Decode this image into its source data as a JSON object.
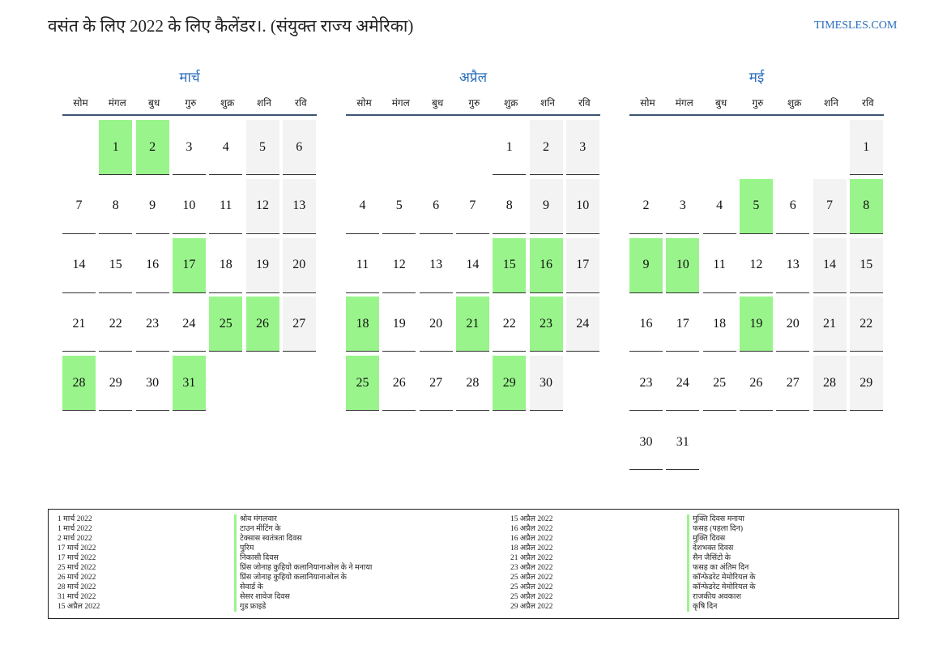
{
  "header": {
    "title": "वसंत के लिए 2022 के लिए कैलेंडर।. (संयुक्त राज्य अमेरिका)",
    "site": "TIMESLES.COM"
  },
  "weekdays": [
    "सोम",
    "मंगल",
    "बुध",
    "गुरु",
    "शुक्र",
    "शनि",
    "रवि"
  ],
  "months": [
    {
      "name": "मार्च",
      "weeks": [
        [
          null,
          1,
          2,
          3,
          4,
          5,
          6
        ],
        [
          7,
          8,
          9,
          10,
          11,
          12,
          13
        ],
        [
          14,
          15,
          16,
          17,
          18,
          19,
          20
        ],
        [
          21,
          22,
          23,
          24,
          25,
          26,
          27
        ],
        [
          28,
          29,
          30,
          31,
          null,
          null,
          null
        ]
      ],
      "holidays": [
        1,
        2,
        17,
        25,
        26,
        28,
        31
      ]
    },
    {
      "name": "अप्रैल",
      "weeks": [
        [
          null,
          null,
          null,
          null,
          1,
          2,
          3
        ],
        [
          4,
          5,
          6,
          7,
          8,
          9,
          10
        ],
        [
          11,
          12,
          13,
          14,
          15,
          16,
          17
        ],
        [
          18,
          19,
          20,
          21,
          22,
          23,
          24
        ],
        [
          25,
          26,
          27,
          28,
          29,
          30,
          null
        ]
      ],
      "holidays": [
        15,
        16,
        18,
        21,
        23,
        25,
        29
      ]
    },
    {
      "name": "मई",
      "weeks": [
        [
          null,
          null,
          null,
          null,
          null,
          null,
          1
        ],
        [
          2,
          3,
          4,
          5,
          6,
          7,
          8
        ],
        [
          9,
          10,
          11,
          12,
          13,
          14,
          15
        ],
        [
          16,
          17,
          18,
          19,
          20,
          21,
          22
        ],
        [
          23,
          24,
          25,
          26,
          27,
          28,
          29
        ],
        [
          30,
          31,
          null,
          null,
          null,
          null,
          null
        ]
      ],
      "holidays": [
        5,
        8,
        9,
        10,
        19
      ]
    }
  ],
  "holiday_list": [
    {
      "date": "1 मार्च 2022",
      "name": "श्रोव मंगलवार"
    },
    {
      "date": "1 मार्च 2022",
      "name": "टाउन मीटिंग के"
    },
    {
      "date": "2 मार्च 2022",
      "name": "टेक्सास स्वतंत्रता दिवस"
    },
    {
      "date": "17 मार्च 2022",
      "name": "पुरिम"
    },
    {
      "date": "17 मार्च 2022",
      "name": "निकासी दिवस"
    },
    {
      "date": "25 मार्च 2022",
      "name": "प्रिंस जोनाह कुहियो कलानियानाओल के ने मनाया"
    },
    {
      "date": "26 मार्च 2022",
      "name": "प्रिंस जोनाह कुहियो कलानियानाओल के"
    },
    {
      "date": "28 मार्च 2022",
      "name": "सेवार्ड के"
    },
    {
      "date": "31 मार्च 2022",
      "name": "सेसर शावेज दिवस"
    },
    {
      "date": "15 अप्रैल 2022",
      "name": "गुड फ्राइडे"
    },
    {
      "date": "15 अप्रैल 2022",
      "name": "मुक्ति दिवस मनाया"
    },
    {
      "date": "16 अप्रैल 2022",
      "name": "फसह (पहला दिन)"
    },
    {
      "date": "16 अप्रैल 2022",
      "name": "मुक्ति दिवस"
    },
    {
      "date": "18 अप्रैल 2022",
      "name": "देशभक्त दिवस"
    },
    {
      "date": "21 अप्रैल 2022",
      "name": "सैन जैसिंटो के"
    },
    {
      "date": "23 अप्रैल 2022",
      "name": "फसह का अंतिम दिन"
    },
    {
      "date": "25 अप्रैल 2022",
      "name": "कॉन्फेडरेट मेमोरियल के"
    },
    {
      "date": "25 अप्रैल 2022",
      "name": "कॉन्फेडरेट मेमोरियल के"
    },
    {
      "date": "25 अप्रैल 2022",
      "name": "राजकीय अवकाश"
    },
    {
      "date": "29 अप्रैल 2022",
      "name": "कृषि दिन"
    }
  ]
}
